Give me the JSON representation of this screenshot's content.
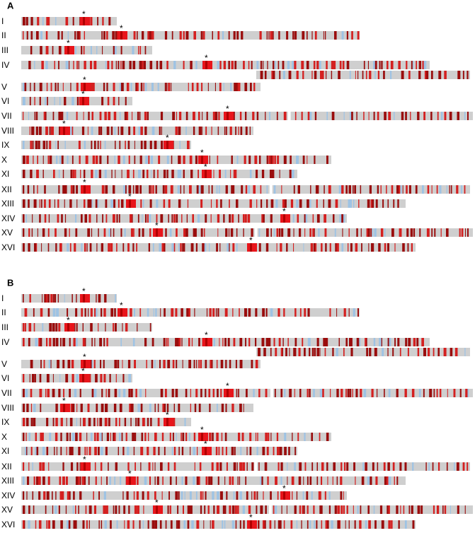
{
  "panels": [
    {
      "label": "A",
      "chromosomes": [
        "I",
        "II",
        "III",
        "IV",
        "V",
        "VI",
        "VII",
        "VIII",
        "IX",
        "X",
        "XI",
        "XII",
        "XIII",
        "XIV",
        "XV",
        "XVI"
      ]
    },
    {
      "label": "B",
      "chromosomes": [
        "I",
        "II",
        "III",
        "IV",
        "V",
        "VI",
        "VII",
        "VIII",
        "IX",
        "X",
        "XI",
        "XII",
        "XIII",
        "XIV",
        "XV",
        "XVI"
      ]
    }
  ],
  "marker": "*"
}
